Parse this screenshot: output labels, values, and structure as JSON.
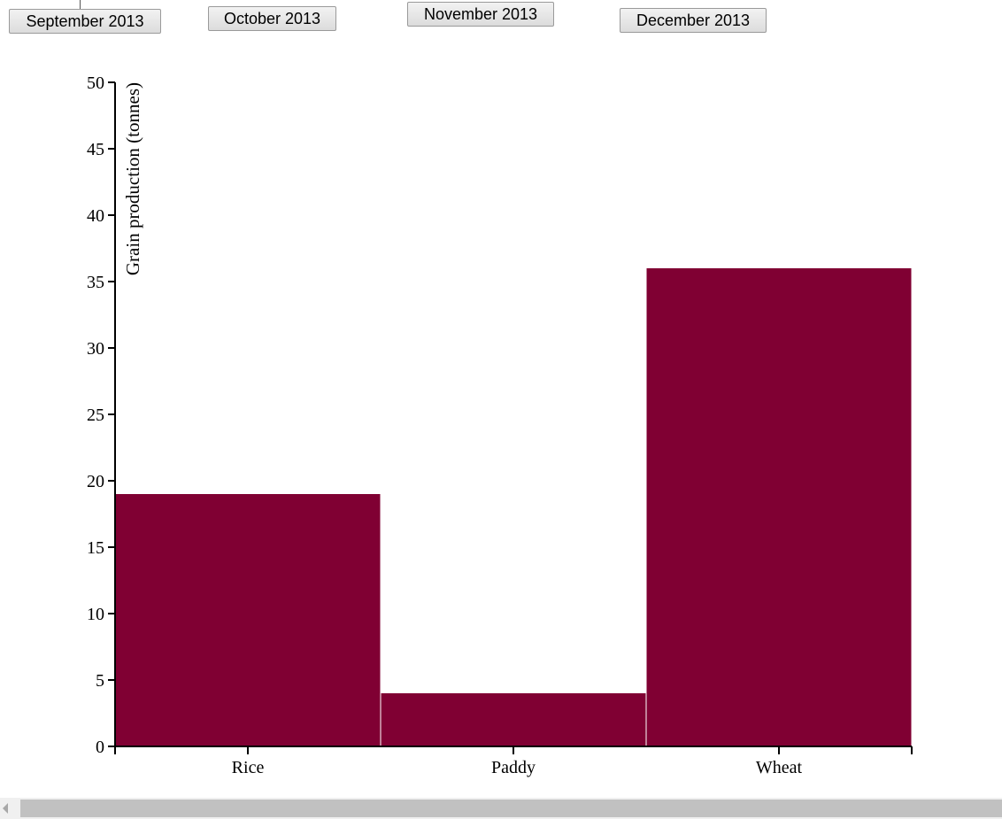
{
  "buttons": [
    "September 2013",
    "October 2013",
    "November 2013",
    "December 2013"
  ],
  "colors": {
    "bar": "#800033",
    "axis": "#000000"
  },
  "chart_data": {
    "type": "bar",
    "categories": [
      "Rice",
      "Paddy",
      "Wheat"
    ],
    "values": [
      19,
      4,
      36
    ],
    "title": "",
    "xlabel": "",
    "ylabel": "Grain production (tonnes)",
    "ylim": [
      0,
      50
    ],
    "yticks": [
      0,
      5,
      10,
      15,
      20,
      25,
      30,
      35,
      40,
      45,
      50
    ],
    "grid": false,
    "legend": "none"
  }
}
